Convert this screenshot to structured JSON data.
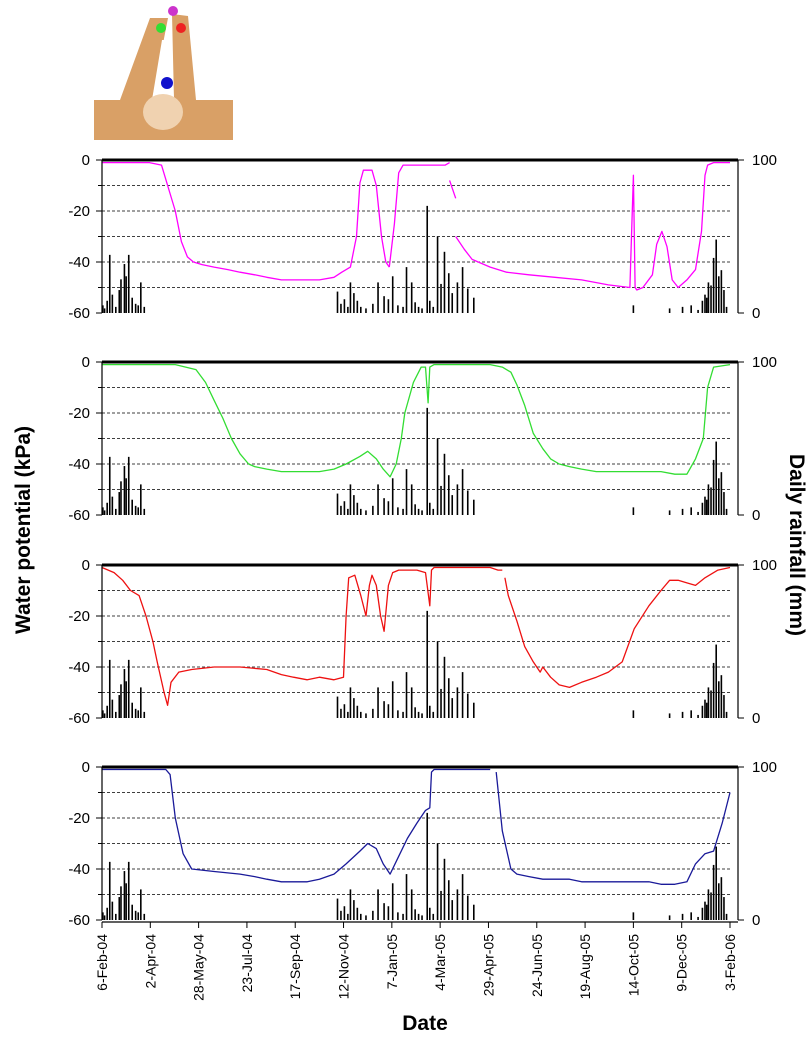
{
  "figure": {
    "ylabel_left": "Water potential (kPa)",
    "ylabel_right": "Daily rainfall (mm)",
    "xlabel": "Date",
    "x_tick_labels": [
      "6-Feb-04",
      "2-Apr-04",
      "28-May-04",
      "23-Jul-04",
      "17-Sep-04",
      "12-Nov-04",
      "7-Jan-05",
      "4-Mar-05",
      "29-Apr-05",
      "24-Jun-05",
      "19-Aug-05",
      "14-Oct-05",
      "9-Dec-05",
      "3-Feb-06"
    ],
    "left_tick_labels": [
      "0",
      "-20",
      "-40",
      "-60"
    ],
    "right_tick_labels": [
      "100",
      "0"
    ]
  },
  "chart_data": {
    "type": "line",
    "x_axis": {
      "type": "date",
      "start": "2004-02-06",
      "end": "2006-02-03"
    },
    "y_left": {
      "range": [
        -60,
        0
      ],
      "ticks": [
        0,
        -20,
        -40,
        -60
      ]
    },
    "y_right": {
      "range": [
        0,
        100
      ],
      "ticks": [
        0,
        100
      ]
    },
    "grid": "dashed horizontal at -10, -20, -30, -40, -50",
    "sensor_diagram": {
      "sensors": [
        "#cc33cc",
        "#33dd33",
        "#ee2222",
        "#1111cc"
      ]
    },
    "rainfall": {
      "dates": [
        "2004-02-07",
        "2004-02-09",
        "2004-02-12",
        "2004-02-15",
        "2004-02-18",
        "2004-02-22",
        "2004-02-26",
        "2004-02-28",
        "2004-03-03",
        "2004-03-05",
        "2004-03-08",
        "2004-03-12",
        "2004-03-16",
        "2004-03-19",
        "2004-03-22",
        "2004-03-26",
        "2004-11-05",
        "2004-11-09",
        "2004-11-13",
        "2004-11-17",
        "2004-11-20",
        "2004-11-24",
        "2004-11-28",
        "2004-12-02",
        "2004-12-08",
        "2004-12-16",
        "2004-12-22",
        "2004-12-29",
        "2005-01-03",
        "2005-01-08",
        "2005-01-14",
        "2005-01-20",
        "2005-01-24",
        "2005-01-30",
        "2005-02-03",
        "2005-02-07",
        "2005-02-11",
        "2005-02-17",
        "2005-02-20",
        "2005-02-24",
        "2005-03-01",
        "2005-03-05",
        "2005-03-09",
        "2005-03-14",
        "2005-03-18",
        "2005-03-24",
        "2005-03-30",
        "2005-04-05",
        "2005-04-12",
        "2005-10-14",
        "2005-11-25",
        "2005-12-10",
        "2005-12-20",
        "2005-12-28",
        "2006-01-02",
        "2006-01-05",
        "2006-01-07",
        "2006-01-09",
        "2006-01-12",
        "2006-01-15",
        "2006-01-18",
        "2006-01-21",
        "2006-01-24",
        "2006-01-27",
        "2006-01-30"
      ],
      "values": [
        5,
        3,
        8,
        38,
        12,
        4,
        15,
        22,
        32,
        24,
        38,
        10,
        6,
        5,
        20,
        4,
        14,
        6,
        9,
        4,
        20,
        13,
        8,
        4,
        3,
        6,
        20,
        11,
        9,
        24,
        5,
        4,
        30,
        20,
        7,
        4,
        3,
        70,
        8,
        4,
        50,
        19,
        40,
        26,
        13,
        20,
        30,
        16,
        10,
        5,
        3,
        4,
        5,
        2,
        8,
        12,
        10,
        20,
        18,
        36,
        48,
        24,
        28,
        15,
        4
      ]
    },
    "series": [
      {
        "color": "#ff00ff",
        "segments": [
          {
            "x": [
              "2004-02-06",
              "2004-04-01",
              "2004-04-15",
              "2004-05-01",
              "2004-05-08",
              "2004-05-15",
              "2004-05-22",
              "2004-06-01",
              "2004-06-15",
              "2004-07-01",
              "2004-07-15",
              "2004-08-01",
              "2004-08-15",
              "2004-09-01",
              "2004-09-15",
              "2004-10-01",
              "2004-10-15",
              "2004-11-01",
              "2004-11-10",
              "2004-11-20",
              "2004-11-27",
              "2004-12-01",
              "2004-12-05",
              "2004-12-10",
              "2004-12-15",
              "2004-12-20",
              "2004-12-26",
              "2004-12-31",
              "2005-01-04"
            ],
            "y": [
              -1,
              -1,
              -2,
              -20,
              -32,
              -38,
              -40,
              -41,
              -42,
              -43,
              -44,
              -45,
              -46,
              -47,
              -47,
              -47,
              -47,
              -46,
              -44,
              -42,
              -30,
              -9,
              -4,
              -4,
              -4,
              -10,
              -30,
              -40,
              -42
            ]
          },
          {
            "x": [
              "2005-01-04",
              "2005-01-10",
              "2005-01-15",
              "2005-01-20",
              "2005-02-01",
              "2005-02-15",
              "2005-03-01",
              "2005-03-10",
              "2005-03-15"
            ],
            "y": [
              -42,
              -25,
              -5,
              -2,
              -2,
              -2,
              -2,
              -2,
              -1
            ]
          },
          {
            "x": [
              "2005-03-15",
              "2005-03-22"
            ],
            "y": [
              -8,
              -15
            ]
          },
          {
            "x": [
              "2005-03-22",
              "2005-04-01",
              "2005-04-10",
              "2005-05-01",
              "2005-05-20",
              "2005-06-15",
              "2005-07-15",
              "2005-08-15",
              "2005-09-15",
              "2005-10-10",
              "2005-10-14",
              "2005-10-16",
              "2005-10-18",
              "2005-10-25",
              "2005-11-05",
              "2005-11-10",
              "2005-11-16",
              "2005-11-22",
              "2005-11-28",
              "2005-12-05",
              "2005-12-15",
              "2005-12-25",
              "2006-01-01",
              "2006-01-05",
              "2006-01-08",
              "2006-01-15",
              "2006-02-03"
            ],
            "y": [
              -30,
              -35,
              -39,
              -42,
              -44,
              -45,
              -46,
              -47,
              -49,
              -50,
              -6,
              -50,
              -51,
              -50,
              -45,
              -33,
              -28,
              -34,
              -47,
              -50,
              -47,
              -43,
              -28,
              -6,
              -2,
              -1,
              -1
            ]
          }
        ]
      },
      {
        "color": "#33dd33",
        "segments": [
          {
            "x": [
              "2004-02-06",
              "2004-05-01",
              "2004-05-25",
              "2004-06-05",
              "2004-06-15",
              "2004-06-25",
              "2004-07-05",
              "2004-07-15",
              "2004-07-25",
              "2004-08-01",
              "2004-08-15",
              "2004-09-01",
              "2004-09-15",
              "2004-10-01",
              "2004-10-15",
              "2004-11-01",
              "2004-11-15",
              "2004-12-01",
              "2004-12-10",
              "2004-12-20",
              "2004-12-28",
              "2005-01-05",
              "2005-01-12",
              "2005-01-18",
              "2005-01-22",
              "2005-02-01",
              "2005-02-10",
              "2005-02-15",
              "2005-02-18",
              "2005-02-20",
              "2005-02-25",
              "2005-04-01",
              "2005-05-01",
              "2005-05-15",
              "2005-05-25",
              "2005-06-01",
              "2005-06-10",
              "2005-06-20",
              "2005-07-01",
              "2005-07-10",
              "2005-07-20",
              "2005-08-01",
              "2005-08-15",
              "2005-09-01",
              "2005-09-15",
              "2005-10-01",
              "2005-10-15",
              "2005-11-01",
              "2005-11-15",
              "2005-12-01",
              "2005-12-15",
              "2005-12-25",
              "2006-01-03",
              "2006-01-08",
              "2006-01-15",
              "2006-02-03"
            ],
            "y": [
              -1,
              -1,
              -3,
              -8,
              -15,
              -22,
              -30,
              -36,
              -40,
              -41,
              -42,
              -43,
              -43,
              -43,
              -43,
              -42,
              -40,
              -37,
              -35,
              -38,
              -42,
              -45,
              -40,
              -30,
              -20,
              -8,
              -2,
              -2,
              -16,
              -2,
              -1,
              -1,
              -1,
              -2,
              -4,
              -9,
              -17,
              -28,
              -34,
              -38,
              -40,
              -41,
              -42,
              -43,
              -43,
              -43,
              -43,
              -43,
              -43,
              -44,
              -44,
              -38,
              -30,
              -10,
              -2,
              -1
            ]
          }
        ]
      },
      {
        "color": "#ee1111",
        "segments": [
          {
            "x": [
              "2004-02-06",
              "2004-02-20",
              "2004-03-01",
              "2004-03-10",
              "2004-03-20",
              "2004-03-28",
              "2004-04-05",
              "2004-04-10",
              "2004-04-18",
              "2004-04-22",
              "2004-04-26",
              "2004-05-05",
              "2004-05-20",
              "2004-06-15",
              "2004-07-15",
              "2004-08-15",
              "2004-09-01",
              "2004-09-15",
              "2004-10-01",
              "2004-10-15",
              "2004-11-01",
              "2004-11-12",
              "2004-11-15",
              "2004-11-18",
              "2004-11-25",
              "2004-12-02",
              "2004-12-08",
              "2004-12-12",
              "2004-12-15",
              "2004-12-20",
              "2004-12-25",
              "2004-12-29",
              "2005-01-03",
              "2005-01-08",
              "2005-01-15",
              "2005-01-25",
              "2005-02-05",
              "2005-02-15",
              "2005-02-20",
              "2005-02-22",
              "2005-02-25",
              "2005-03-15",
              "2005-04-15",
              "2005-05-01",
              "2005-05-10",
              "2005-05-15"
            ],
            "y": [
              -1,
              -3,
              -6,
              -10,
              -12,
              -20,
              -30,
              -38,
              -50,
              -55,
              -46,
              -42,
              -41,
              -40,
              -40,
              -41,
              -43,
              -44,
              -45,
              -44,
              -45,
              -44,
              -20,
              -5,
              -4,
              -12,
              -20,
              -8,
              -4,
              -8,
              -20,
              -26,
              -8,
              -3,
              -2,
              -2,
              -2,
              -3,
              -16,
              -2,
              -1,
              -1,
              -1,
              -1,
              -2,
              -2
            ]
          },
          {
            "x": [
              "2005-05-18",
              "2005-05-22",
              "2005-06-01",
              "2005-06-10",
              "2005-06-20",
              "2005-06-28",
              "2005-07-01",
              "2005-07-10",
              "2005-07-20",
              "2005-08-01",
              "2005-08-15",
              "2005-09-01",
              "2005-09-15",
              "2005-10-01",
              "2005-10-15",
              "2005-11-01",
              "2005-11-15",
              "2005-11-25",
              "2005-12-05",
              "2005-12-15",
              "2005-12-25",
              "2006-01-05",
              "2006-01-20",
              "2006-02-03"
            ],
            "y": [
              -5,
              -12,
              -22,
              -32,
              -38,
              -42,
              -40,
              -44,
              -47,
              -48,
              -46,
              -44,
              -42,
              -38,
              -25,
              -16,
              -10,
              -6,
              -6,
              -7,
              -8,
              -5,
              -2,
              -1
            ]
          }
        ]
      },
      {
        "color": "#1a1a99",
        "segments": [
          {
            "x": [
              "2004-02-06",
              "2004-04-20",
              "2004-04-25",
              "2004-05-01",
              "2004-05-10",
              "2004-05-20",
              "2004-06-15",
              "2004-07-15",
              "2004-08-01",
              "2004-08-15",
              "2004-09-01",
              "2004-09-15",
              "2004-10-01",
              "2004-10-15",
              "2004-11-01",
              "2004-11-15",
              "2004-12-01",
              "2004-12-10",
              "2004-12-20",
              "2004-12-28",
              "2005-01-05",
              "2005-01-15",
              "2005-01-25",
              "2005-02-05",
              "2005-02-15",
              "2005-02-20",
              "2005-02-22",
              "2005-02-25",
              "2005-04-25",
              "2005-05-01"
            ],
            "y": [
              -1,
              -1,
              -3,
              -20,
              -34,
              -40,
              -41,
              -42,
              -43,
              -44,
              -45,
              -45,
              -45,
              -44,
              -42,
              -38,
              -33,
              -30,
              -32,
              -38,
              -42,
              -35,
              -28,
              -22,
              -17,
              -16,
              -2,
              -1,
              -1,
              -1
            ]
          },
          {
            "x": [
              "2005-05-08",
              "2005-05-15",
              "2005-05-25",
              "2005-06-01",
              "2005-06-15",
              "2005-07-01",
              "2005-07-15",
              "2005-08-01",
              "2005-08-15",
              "2005-09-01",
              "2005-09-15",
              "2005-10-01",
              "2005-10-15",
              "2005-11-01",
              "2005-11-15",
              "2005-12-01",
              "2005-12-15",
              "2005-12-25",
              "2006-01-05",
              "2006-01-15",
              "2006-01-25",
              "2006-02-03"
            ],
            "y": [
              -2,
              -25,
              -40,
              -42,
              -43,
              -44,
              -44,
              -44,
              -45,
              -45,
              -45,
              -45,
              -45,
              -45,
              -46,
              -46,
              -45,
              -38,
              -34,
              -33,
              -22,
              -10
            ]
          }
        ]
      }
    ]
  }
}
